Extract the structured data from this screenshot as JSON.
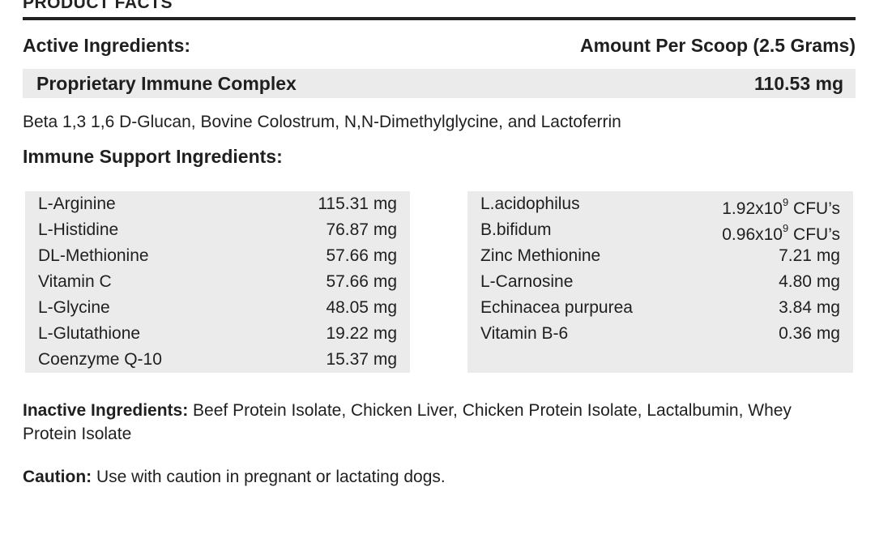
{
  "header": {
    "title": "PRODUCT FACTS"
  },
  "active": {
    "label": "Active Ingredients:",
    "amount_header": "Amount Per Scoop (2.5 Grams)"
  },
  "complex": {
    "name": "Proprietary Immune Complex",
    "amount": "110.53 mg",
    "description": "Beta 1,3 1,6 D-Glucan, Bovine Colostrum, N,N-Dimethylglycine, and Lactoferrin"
  },
  "support": {
    "heading": "Immune Support Ingredients:",
    "left": [
      {
        "name": "L-Arginine",
        "amount": "115.31 mg"
      },
      {
        "name": "L-Histidine",
        "amount": "76.87 mg"
      },
      {
        "name": "DL-Methionine",
        "amount": "57.66 mg"
      },
      {
        "name": "Vitamin C",
        "amount": "57.66 mg"
      },
      {
        "name": "L-Glycine",
        "amount": "48.05 mg"
      },
      {
        "name": "L-Glutathione",
        "amount": "19.22 mg"
      },
      {
        "name": "Coenzyme Q-10",
        "amount": "15.37 mg"
      }
    ],
    "right": [
      {
        "name": "L.acidophilus",
        "amount_base": "1.92x10",
        "amount_exp": "9",
        "amount_unit": " CFU’s"
      },
      {
        "name": "B.bifidum",
        "amount_base": "0.96x10",
        "amount_exp": "9",
        "amount_unit": " CFU’s"
      },
      {
        "name": "Zinc Methionine",
        "amount_base": "7.21 mg"
      },
      {
        "name": "L-Carnosine",
        "amount_base": "4.80 mg"
      },
      {
        "name": "Echinacea purpurea",
        "amount_base": "3.84 mg"
      },
      {
        "name": "Vitamin B-6",
        "amount_base": "0.36 mg"
      }
    ]
  },
  "inactive": {
    "label": "Inactive Ingredients:",
    "text": " Beef Protein Isolate, Chicken Liver, Chicken Protein Isolate, Lactalbumin, Whey Protein Isolate"
  },
  "caution": {
    "label": "Caution:",
    "text": " Use with caution in pregnant or lactating dogs."
  }
}
